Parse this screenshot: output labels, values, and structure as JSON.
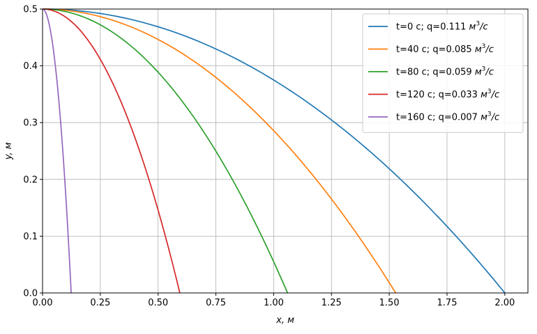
{
  "chart_data": {
    "type": "line",
    "title": "",
    "xlabel": "x, м",
    "ylabel": "y, м",
    "xlim": [
      0,
      2.1
    ],
    "ylim": [
      0,
      0.5
    ],
    "xticks": [
      0.0,
      0.25,
      0.5,
      0.75,
      1.0,
      1.25,
      1.5,
      1.75,
      2.0
    ],
    "xtick_labels": [
      "0.00",
      "0.25",
      "0.50",
      "0.75",
      "1.00",
      "1.25",
      "1.50",
      "1.75",
      "2.00"
    ],
    "yticks": [
      0.0,
      0.1,
      0.2,
      0.3,
      0.4,
      0.5
    ],
    "ytick_labels": [
      "0.0",
      "0.1",
      "0.2",
      "0.3",
      "0.4",
      "0.5"
    ],
    "grid": true,
    "legend_position": "top-right",
    "series": [
      {
        "name": "t=0 с; q=0.111 м³/с",
        "legend_main": "t=0 с; q=0.111 ",
        "legend_unit_base": "м",
        "legend_unit_exp": "3",
        "legend_unit_den": "/с",
        "color": "#1f77b4",
        "x": [
          0,
          0.25,
          0.5,
          0.75,
          1.0,
          1.25,
          1.5,
          1.75,
          2.0
        ],
        "y": [
          0.5,
          0.492,
          0.469,
          0.43,
          0.375,
          0.305,
          0.219,
          0.117,
          0.0
        ]
      },
      {
        "name": "t=40 с; q=0.085 м³/с",
        "legend_main": "t=40 с; q=0.085 ",
        "legend_unit_base": "м",
        "legend_unit_exp": "3",
        "legend_unit_den": "/с",
        "color": "#ff7f0e",
        "x": [
          0,
          0.191,
          0.382,
          0.573,
          0.764,
          0.955,
          1.146,
          1.337,
          1.528
        ],
        "y": [
          0.5,
          0.492,
          0.469,
          0.43,
          0.375,
          0.305,
          0.219,
          0.117,
          0.0
        ]
      },
      {
        "name": "t=80 с; q=0.059 м³/с",
        "legend_main": "t=80 с; q=0.059 ",
        "legend_unit_base": "м",
        "legend_unit_exp": "3",
        "legend_unit_den": "/с",
        "color": "#2ca02c",
        "x": [
          0,
          0.133,
          0.265,
          0.398,
          0.53,
          0.663,
          0.795,
          0.928,
          1.06
        ],
        "y": [
          0.5,
          0.492,
          0.469,
          0.43,
          0.375,
          0.305,
          0.219,
          0.117,
          0.0
        ]
      },
      {
        "name": "t=120 с; q=0.033 м³/с",
        "legend_main": "t=120 с; q=0.033 ",
        "legend_unit_base": "м",
        "legend_unit_exp": "3",
        "legend_unit_den": "/с",
        "color": "#d62728",
        "x": [
          0,
          0.074,
          0.148,
          0.223,
          0.297,
          0.371,
          0.445,
          0.519,
          0.594
        ],
        "y": [
          0.5,
          0.492,
          0.469,
          0.43,
          0.375,
          0.305,
          0.219,
          0.117,
          0.0
        ]
      },
      {
        "name": "t=160 с; q=0.007 м³/с",
        "legend_main": "t=160 с; q=0.007 ",
        "legend_unit_base": "м",
        "legend_unit_exp": "3",
        "legend_unit_den": "/с",
        "color": "#9467bd",
        "x": [
          0,
          0.0155,
          0.031,
          0.0465,
          0.062,
          0.0775,
          0.093,
          0.1085,
          0.124
        ],
        "y": [
          0.5,
          0.492,
          0.469,
          0.43,
          0.375,
          0.305,
          0.219,
          0.117,
          0.0
        ]
      }
    ]
  }
}
